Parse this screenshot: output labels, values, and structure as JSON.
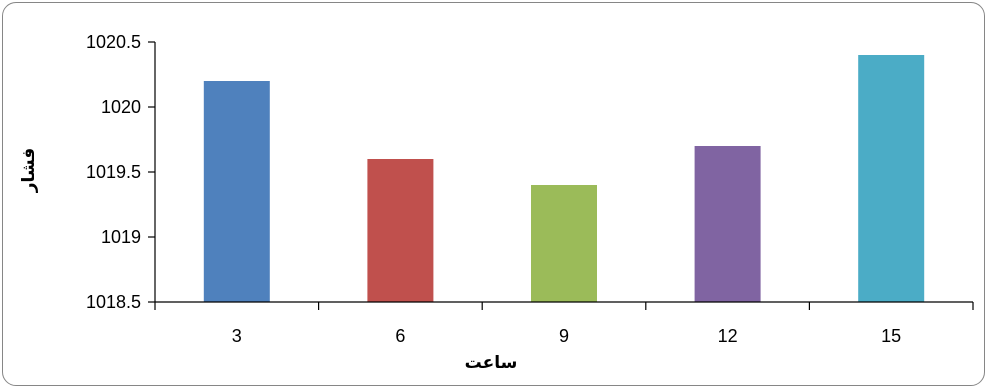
{
  "chart_data": {
    "type": "bar",
    "title": "",
    "xlabel": "ساعت",
    "ylabel": "فشار",
    "categories": [
      "3",
      "6",
      "9",
      "12",
      "15"
    ],
    "values": [
      1020.2,
      1019.6,
      1019.4,
      1019.7,
      1020.4
    ],
    "ylim": [
      1018.5,
      1020.5
    ],
    "yticks": [
      1018.5,
      1019,
      1019.5,
      1020,
      1020.5
    ],
    "ytick_labels": [
      "1018.5",
      "1019",
      "1019.5",
      "1020",
      "1020.5"
    ],
    "grid": false,
    "legend": "none",
    "bar_colors": [
      "#4F81BD",
      "#C0504D",
      "#9BBB59",
      "#8064A2",
      "#4BACC6"
    ]
  }
}
